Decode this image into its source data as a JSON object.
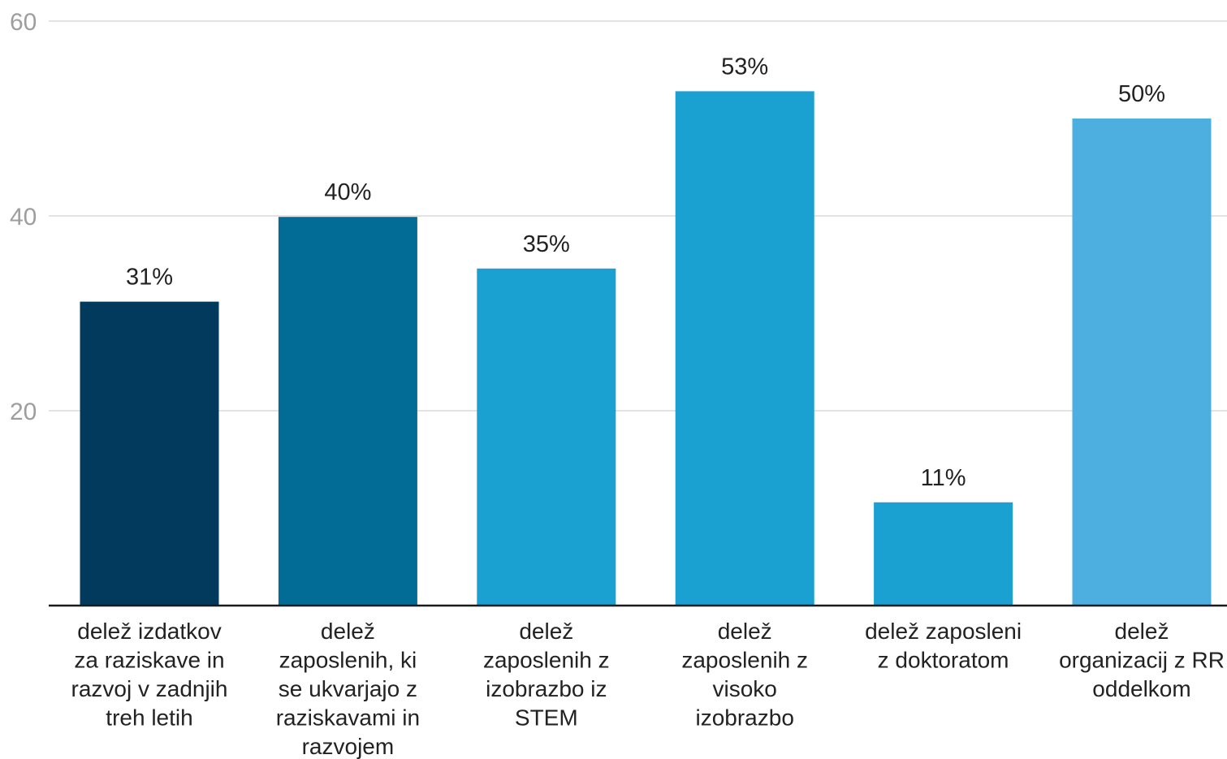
{
  "chart_data": {
    "type": "bar",
    "title": "",
    "xlabel": "",
    "ylabel": "",
    "ylim": [
      0,
      60
    ],
    "yticks": [
      20,
      40,
      60
    ],
    "grid": true,
    "categories": [
      [
        "delež izdatkov",
        "za raziskave in",
        "razvoj v zadnjih",
        "treh letih"
      ],
      [
        "delež",
        "zaposlenih, ki",
        "se ukvarjajo z",
        "raziskavami in",
        "razvojem"
      ],
      [
        "delež",
        "zaposlenih z",
        "izobrazbo iz",
        "STEM"
      ],
      [
        "delež",
        "zaposlenih z",
        "visoko",
        "izobrazbo"
      ],
      [
        "delež zaposleni",
        "z doktoratom"
      ],
      [
        "delež",
        "organizacij z RR",
        "oddelkom"
      ]
    ],
    "values": [
      31,
      40,
      35,
      53,
      11,
      50
    ],
    "plotted_values": [
      31.2,
      39.9,
      34.6,
      52.8,
      10.6,
      50.0
    ],
    "data_labels": [
      "31%",
      "40%",
      "35%",
      "53%",
      "11%",
      "50%"
    ],
    "colors": [
      "#023a5e",
      "#026c96",
      "#1aa0d1",
      "#1aa0d1",
      "#1aa0d1",
      "#4cafe0"
    ]
  }
}
